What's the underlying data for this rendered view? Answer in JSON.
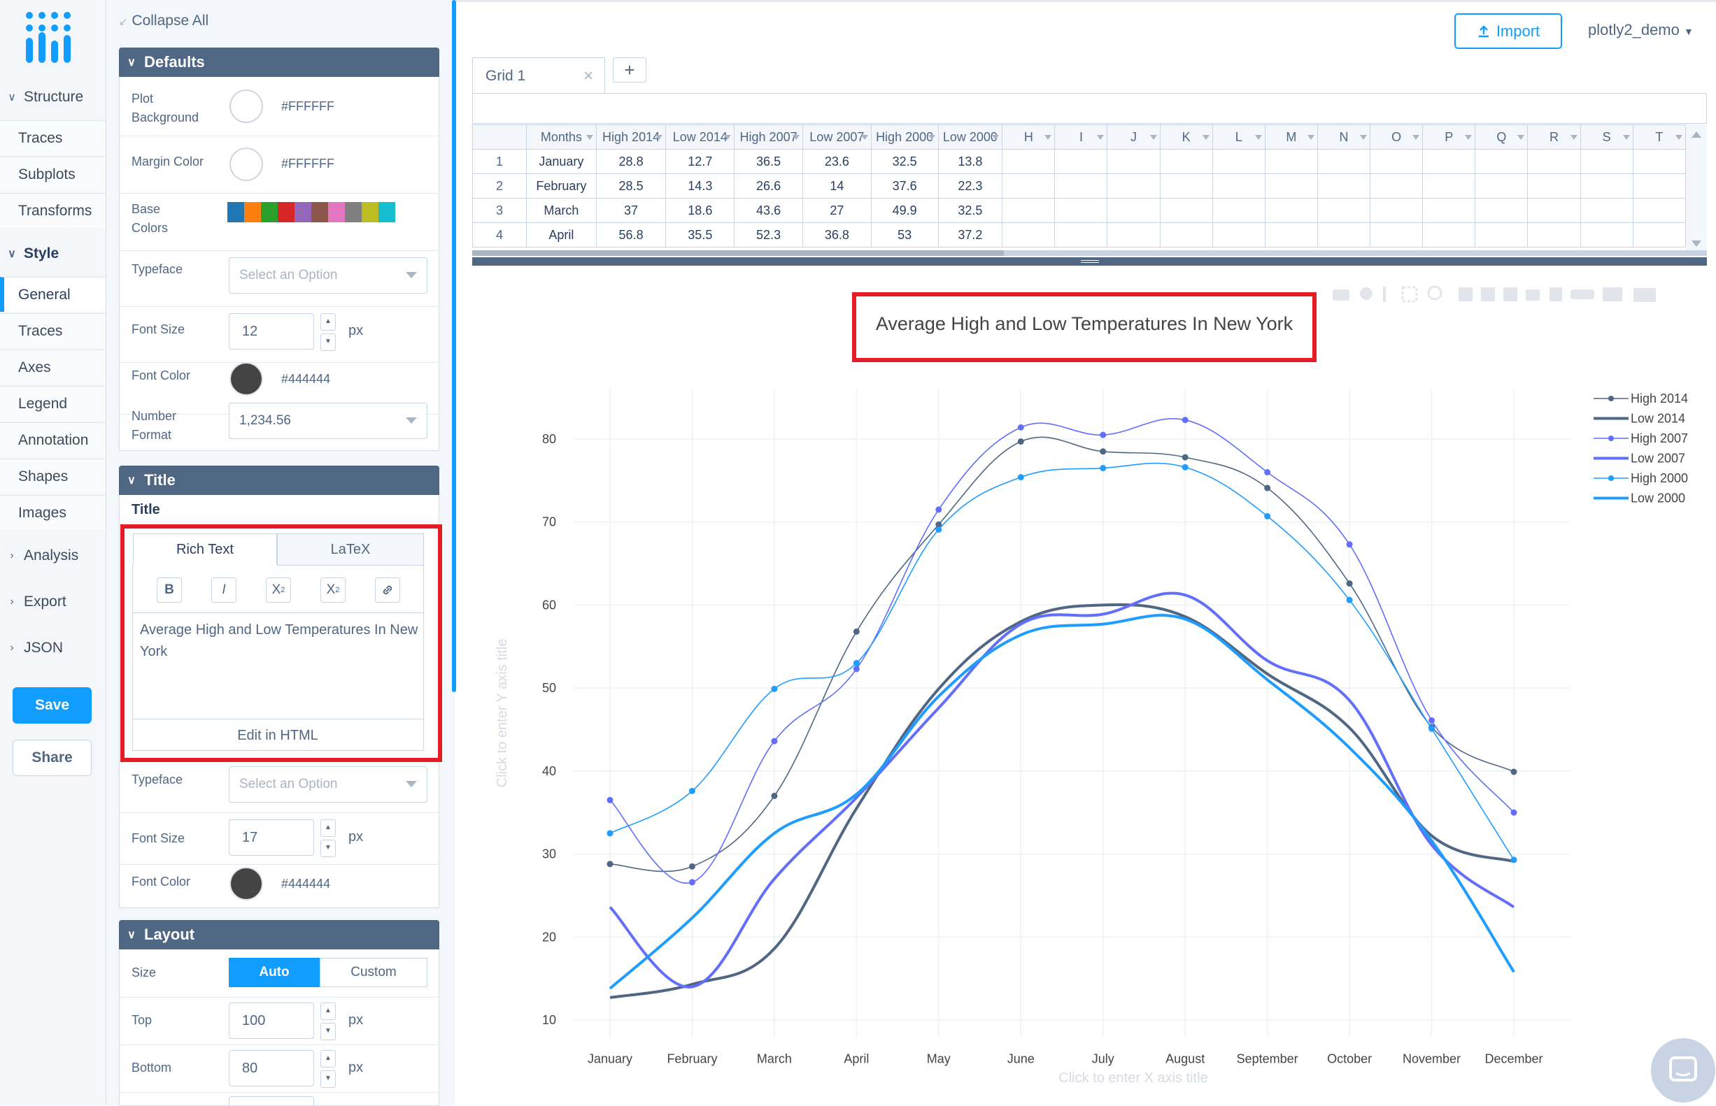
{
  "nav": {
    "sections": [
      {
        "label": "Structure",
        "expanded": true
      },
      {
        "label": "Style",
        "expanded": true
      },
      {
        "label": "Analysis",
        "expanded": false
      },
      {
        "label": "Export",
        "expanded": false
      },
      {
        "label": "JSON",
        "expanded": false
      }
    ],
    "structure_items": [
      "Traces",
      "Subplots",
      "Transforms"
    ],
    "style_items": [
      "General",
      "Traces",
      "Axes",
      "Legend",
      "Annotation",
      "Shapes",
      "Images"
    ],
    "active_item": "General",
    "save_label": "Save",
    "share_label": "Share"
  },
  "panel": {
    "collapse_all": "Collapse All",
    "defaults": {
      "header": "Defaults",
      "plot_bg_label": "Plot\nBackground",
      "plot_bg_value": "#FFFFFF",
      "margin_color_label": "Margin Color",
      "margin_color_value": "#FFFFFF",
      "base_colors_label": "Base\nColors",
      "base_colors": [
        "#1f77b4",
        "#ff7f0e",
        "#2ca02c",
        "#d62728",
        "#9467bd",
        "#8c564b",
        "#e377c2",
        "#7f7f7f",
        "#bcbd22",
        "#17becf"
      ],
      "typeface_label": "Typeface",
      "typeface_placeholder": "Select an Option",
      "font_size_label": "Font Size",
      "font_size_value": "12",
      "font_size_unit": "px",
      "font_color_label": "Font Color",
      "font_color_value": "#444444",
      "number_format_label": "Number\nFormat",
      "number_format_value": "1,234.56"
    },
    "title": {
      "header": "Title",
      "sublabel": "Title",
      "tab_rich": "Rich Text",
      "tab_latex": "LaTeX",
      "btn_bold": "B",
      "btn_italic": "I",
      "btn_sub": "X",
      "btn_sub_mark": "2",
      "btn_sup": "X",
      "btn_sup_mark": "2",
      "text": "Average High and Low Temperatures In New York",
      "edit_html": "Edit in HTML",
      "typeface_label": "Typeface",
      "typeface_placeholder": "Select an Option",
      "font_size_label": "Font Size",
      "font_size_value": "17",
      "font_size_unit": "px",
      "font_color_label": "Font Color",
      "font_color_value": "#444444"
    },
    "layout": {
      "header": "Layout",
      "size_label": "Size",
      "size_auto": "Auto",
      "size_custom": "Custom",
      "top_label": "Top",
      "top_value": "100",
      "top_unit": "px",
      "bottom_label": "Bottom",
      "bottom_value": "80",
      "bottom_unit": "px"
    }
  },
  "topbar": {
    "import_label": "Import",
    "user": "plotly2_demo"
  },
  "grid": {
    "tab_label": "Grid 1",
    "columns": [
      "Months",
      "High 2014",
      "Low 2014",
      "High 2007",
      "Low 2007",
      "High 2000",
      "Low 2000",
      "H",
      "I",
      "J",
      "K",
      "L",
      "M",
      "N",
      "O",
      "P",
      "Q",
      "R",
      "S",
      "T"
    ],
    "rows": [
      {
        "num": "1",
        "cells": [
          "January",
          "28.8",
          "12.7",
          "36.5",
          "23.6",
          "32.5",
          "13.8"
        ]
      },
      {
        "num": "2",
        "cells": [
          "February",
          "28.5",
          "14.3",
          "26.6",
          "14",
          "37.6",
          "22.3"
        ]
      },
      {
        "num": "3",
        "cells": [
          "March",
          "37",
          "18.6",
          "43.6",
          "27",
          "49.9",
          "32.5"
        ]
      },
      {
        "num": "4",
        "cells": [
          "April",
          "56.8",
          "35.5",
          "52.3",
          "36.8",
          "53",
          "37.2"
        ]
      }
    ]
  },
  "plot": {
    "x_axis_placeholder": "Click to enter X axis title",
    "y_axis_placeholder": "Click to enter Y axis title"
  },
  "chart_data": {
    "type": "line",
    "title": "Average High and Low Temperatures In New York",
    "categories": [
      "January",
      "February",
      "March",
      "April",
      "May",
      "June",
      "July",
      "August",
      "September",
      "October",
      "November",
      "December"
    ],
    "ylim": [
      8,
      86
    ],
    "yticks": [
      10,
      20,
      30,
      40,
      50,
      60,
      70,
      80
    ],
    "grid": true,
    "legend_position": "top-right",
    "series": [
      {
        "name": "High 2014",
        "color": "#506784",
        "width": 1.6,
        "markers": true,
        "values": [
          28.8,
          28.5,
          37,
          56.8,
          69.7,
          79.7,
          78.5,
          77.8,
          74.1,
          62.6,
          45.3,
          39.9
        ]
      },
      {
        "name": "Low 2014",
        "color": "#506784",
        "width": 4,
        "markers": false,
        "values": [
          12.7,
          14.3,
          18.6,
          35.5,
          49.9,
          58,
          60,
          58.6,
          51.7,
          45.2,
          32.2,
          29.1
        ]
      },
      {
        "name": "High 2007",
        "color": "#636efa",
        "width": 1.6,
        "markers": true,
        "values": [
          36.5,
          26.6,
          43.6,
          52.3,
          71.5,
          81.4,
          80.5,
          82.3,
          76,
          67.3,
          46.1,
          35
        ]
      },
      {
        "name": "Low 2007",
        "color": "#636efa",
        "width": 4,
        "markers": false,
        "values": [
          23.6,
          14,
          27,
          36.8,
          47.6,
          57.7,
          58.9,
          61.2,
          53.3,
          48.5,
          31.1,
          23.6
        ]
      },
      {
        "name": "High 2000",
        "color": "#1f9dff",
        "width": 1.6,
        "markers": true,
        "values": [
          32.5,
          37.6,
          49.9,
          53,
          69.1,
          75.4,
          76.5,
          76.6,
          70.7,
          60.6,
          45.1,
          29.3
        ]
      },
      {
        "name": "Low 2000",
        "color": "#1f9dff",
        "width": 4,
        "markers": false,
        "values": [
          13.8,
          22.3,
          32.5,
          37.2,
          49,
          56.4,
          57.7,
          58.3,
          51,
          42.8,
          31.6,
          15.8
        ]
      }
    ]
  }
}
